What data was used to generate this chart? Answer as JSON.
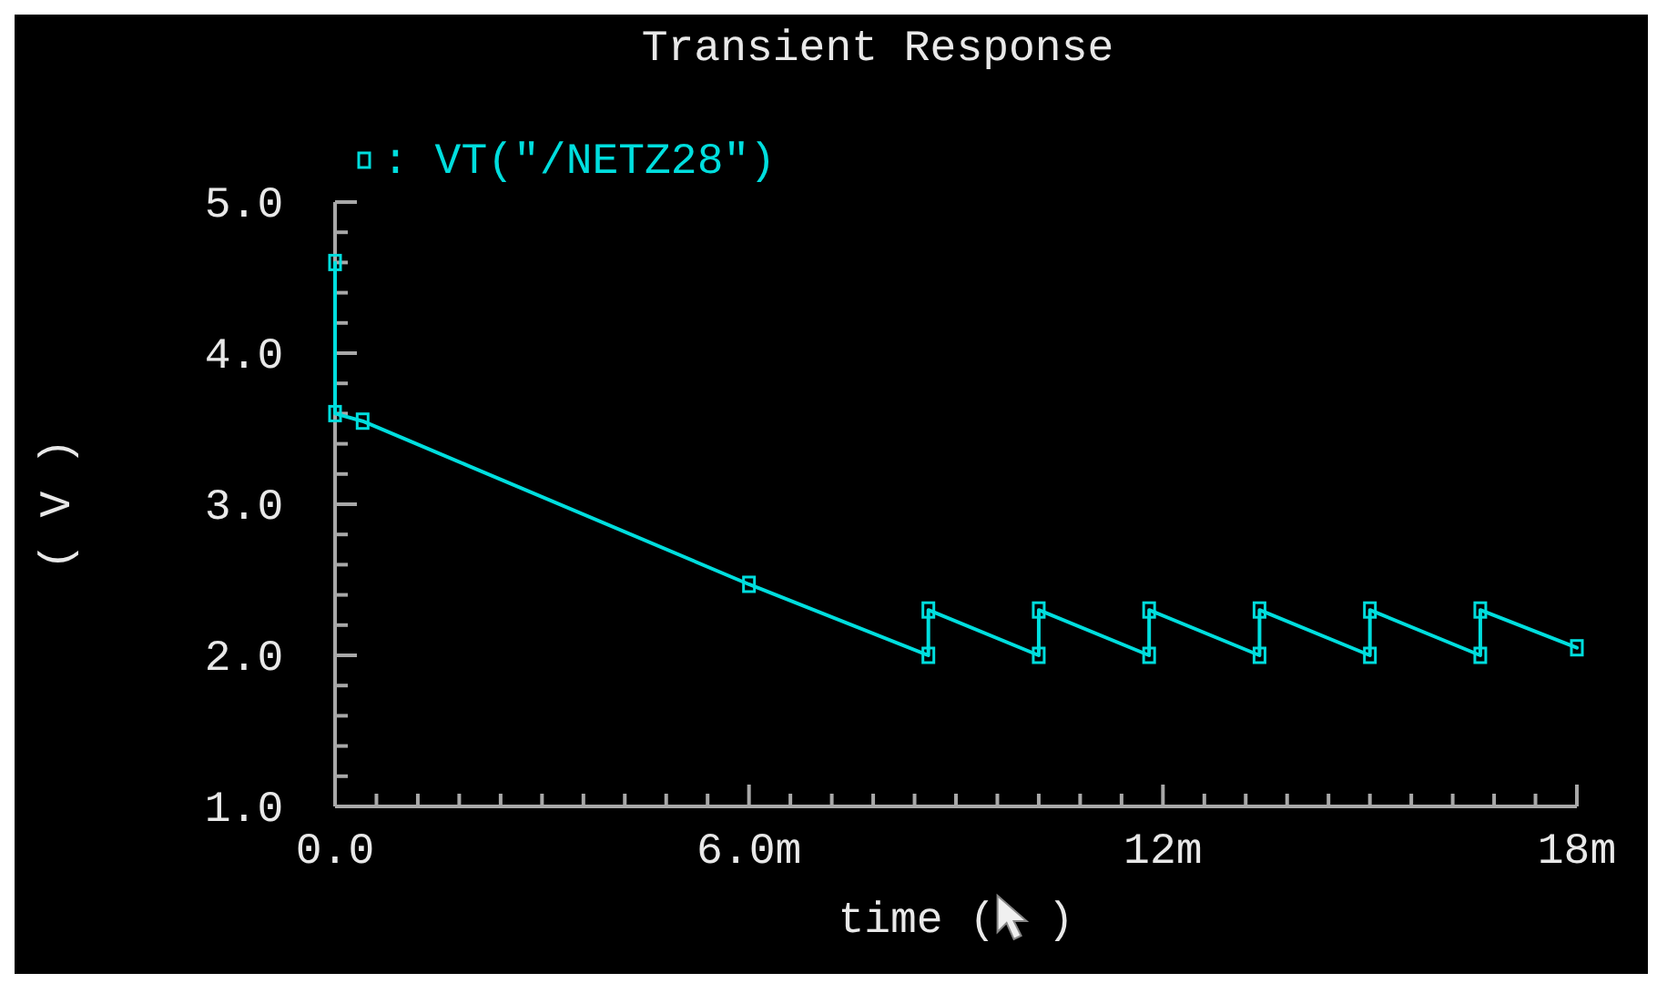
{
  "chart_data": {
    "type": "line",
    "title": "Transient Response",
    "xlabel": "time (  )",
    "ylabel": "( V )",
    "x": [
      0,
      0,
      0.4,
      6,
      8.6,
      8.6,
      10.2,
      10.2,
      11.8,
      11.8,
      13.4,
      13.4,
      15,
      15,
      16.6,
      16.6,
      18
    ],
    "series": [
      {
        "name": ": VT(\"/NETZ28\")",
        "color": "#00dede",
        "values": [
          4.6,
          3.6,
          3.55,
          2.47,
          2.0,
          2.3,
          2.0,
          2.3,
          2.0,
          2.3,
          2.0,
          2.3,
          2.0,
          2.3,
          2.0,
          2.3,
          2.05
        ]
      }
    ],
    "xlim": [
      0,
      18
    ],
    "xticks": [
      {
        "value": 0,
        "label": "0.0"
      },
      {
        "value": 0.6,
        "label": null
      },
      {
        "value": 1.2,
        "label": null
      },
      {
        "value": 1.8,
        "label": null
      },
      {
        "value": 2.4,
        "label": null
      },
      {
        "value": 3,
        "label": null
      },
      {
        "value": 3.6,
        "label": null
      },
      {
        "value": 4.2,
        "label": null
      },
      {
        "value": 4.8,
        "label": null
      },
      {
        "value": 5.4,
        "label": null
      },
      {
        "value": 6,
        "label": "6.0m"
      },
      {
        "value": 6.6,
        "label": null
      },
      {
        "value": 7.2,
        "label": null
      },
      {
        "value": 7.8,
        "label": null
      },
      {
        "value": 8.4,
        "label": null
      },
      {
        "value": 9,
        "label": null
      },
      {
        "value": 9.6,
        "label": null
      },
      {
        "value": 10.2,
        "label": null
      },
      {
        "value": 10.8,
        "label": null
      },
      {
        "value": 11.4,
        "label": null
      },
      {
        "value": 12,
        "label": "12m"
      },
      {
        "value": 12.6,
        "label": null
      },
      {
        "value": 13.2,
        "label": null
      },
      {
        "value": 13.8,
        "label": null
      },
      {
        "value": 14.4,
        "label": null
      },
      {
        "value": 15,
        "label": null
      },
      {
        "value": 15.6,
        "label": null
      },
      {
        "value": 16.2,
        "label": null
      },
      {
        "value": 16.8,
        "label": null
      },
      {
        "value": 17.4,
        "label": null
      },
      {
        "value": 18,
        "label": "18m"
      }
    ],
    "ylim": [
      1,
      5
    ],
    "yticks": [
      {
        "value": 1,
        "label": "1.0"
      },
      {
        "value": 1.2,
        "label": null
      },
      {
        "value": 1.4,
        "label": null
      },
      {
        "value": 1.6,
        "label": null
      },
      {
        "value": 1.8,
        "label": null
      },
      {
        "value": 2,
        "label": "2.0"
      },
      {
        "value": 2.2,
        "label": null
      },
      {
        "value": 2.4,
        "label": null
      },
      {
        "value": 2.6,
        "label": null
      },
      {
        "value": 2.8,
        "label": null
      },
      {
        "value": 3,
        "label": "3.0"
      },
      {
        "value": 3.2,
        "label": null
      },
      {
        "value": 3.4,
        "label": null
      },
      {
        "value": 3.6,
        "label": null
      },
      {
        "value": 3.8,
        "label": null
      },
      {
        "value": 4,
        "label": "4.0"
      },
      {
        "value": 4.2,
        "label": null
      },
      {
        "value": 4.4,
        "label": null
      },
      {
        "value": 4.6,
        "label": null
      },
      {
        "value": 4.8,
        "label": null
      },
      {
        "value": 5,
        "label": "5.0"
      }
    ],
    "grid": false,
    "legend": "top left",
    "marker": "square",
    "line_style": "solid"
  }
}
